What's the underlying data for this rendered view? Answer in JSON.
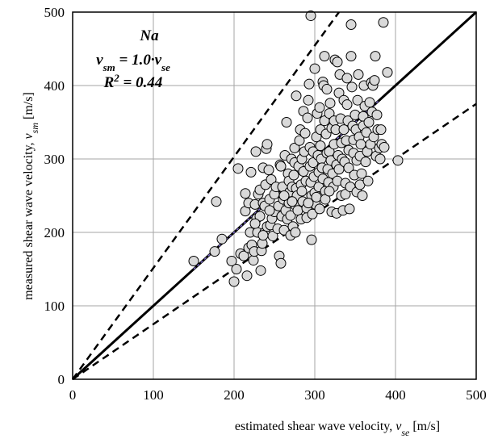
{
  "chart_data": {
    "type": "scatter",
    "title": "",
    "xlabel": "estimated shear wave velocity, v_se [m/s]",
    "ylabel": "measured shear wave velocity, v_sm [m/s]",
    "xlim": [
      0,
      500
    ],
    "ylim": [
      0,
      500
    ],
    "x_ticks": [
      0,
      100,
      200,
      300,
      400,
      500
    ],
    "y_ticks": [
      0,
      100,
      200,
      300,
      400,
      500
    ],
    "grid": true,
    "legend": "none",
    "annotations": {
      "label": "Na",
      "equation": "v_sm = 1.0·v_se",
      "r2": "R² = 0.44"
    },
    "lines": {
      "one_to_one": {
        "x": [
          0,
          500
        ],
        "y": [
          0,
          500
        ]
      },
      "upper_bound": {
        "x": [
          0,
          330
        ],
        "y": [
          0,
          500
        ]
      },
      "lower_bound": {
        "x": [
          0,
          500
        ],
        "y": [
          0,
          375
        ]
      },
      "trend": {
        "x": [
          150,
          380
        ],
        "y": [
          150,
          380
        ]
      }
    },
    "colors": {
      "marker_fill": "#d9d9d9",
      "marker_edge": "#000000",
      "grid": "#a6a6a6",
      "trend": "#7a68c8"
    },
    "series": [
      {
        "points": [
          [
            150,
            161
          ],
          [
            178,
            242
          ],
          [
            176,
            174
          ],
          [
            185,
            191
          ],
          [
            197,
            161
          ],
          [
            200,
            133
          ],
          [
            203,
            150
          ],
          [
            205,
            287
          ],
          [
            208,
            171
          ],
          [
            212,
            168
          ],
          [
            214,
            253
          ],
          [
            214,
            229
          ],
          [
            216,
            141
          ],
          [
            218,
            240
          ],
          [
            218,
            179
          ],
          [
            220,
            200
          ],
          [
            221,
            282
          ],
          [
            222,
            183
          ],
          [
            224,
            162
          ],
          [
            225,
            174
          ],
          [
            226,
            238
          ],
          [
            227,
            310
          ],
          [
            228,
            219
          ],
          [
            229,
            200
          ],
          [
            230,
            252
          ],
          [
            232,
            258
          ],
          [
            232,
            222
          ],
          [
            233,
            148
          ],
          [
            234,
            175
          ],
          [
            235,
            185
          ],
          [
            236,
            240
          ],
          [
            236,
            288
          ],
          [
            238,
            236
          ],
          [
            238,
            200
          ],
          [
            239,
            265
          ],
          [
            240,
            314
          ],
          [
            241,
            320
          ],
          [
            241,
            208
          ],
          [
            243,
            285
          ],
          [
            244,
            245
          ],
          [
            245,
            210
          ],
          [
            246,
            272
          ],
          [
            247,
            219
          ],
          [
            248,
            195
          ],
          [
            250,
            252
          ],
          [
            250,
            228
          ],
          [
            252,
            262
          ],
          [
            254,
            205
          ],
          [
            255,
            236
          ],
          [
            256,
            168
          ],
          [
            257,
            292
          ],
          [
            258,
            158
          ],
          [
            259,
            222
          ],
          [
            260,
            262
          ],
          [
            261,
            245
          ],
          [
            262,
            203
          ],
          [
            263,
            305
          ],
          [
            264,
            230
          ],
          [
            265,
            350
          ],
          [
            266,
            218
          ],
          [
            267,
            280
          ],
          [
            268,
            270
          ],
          [
            268,
            240
          ],
          [
            269,
            255
          ],
          [
            270,
            196
          ],
          [
            270,
            223
          ],
          [
            271,
            300
          ],
          [
            272,
            262
          ],
          [
            273,
            208
          ],
          [
            274,
            278
          ],
          [
            275,
            315
          ],
          [
            275,
            295
          ],
          [
            276,
            237
          ],
          [
            276,
            200
          ],
          [
            277,
            386
          ],
          [
            277,
            260
          ],
          [
            278,
            250
          ],
          [
            279,
            230
          ],
          [
            280,
            290
          ],
          [
            281,
            325
          ],
          [
            282,
            340
          ],
          [
            283,
            218
          ],
          [
            283,
            265
          ],
          [
            284,
            300
          ],
          [
            285,
            242
          ],
          [
            286,
            365
          ],
          [
            286,
            283
          ],
          [
            287,
            310
          ],
          [
            288,
            335
          ],
          [
            289,
            270
          ],
          [
            290,
            233
          ],
          [
            290,
            220
          ],
          [
            291,
            356
          ],
          [
            292,
            380
          ],
          [
            293,
            402
          ],
          [
            294,
            316
          ],
          [
            294,
            290
          ],
          [
            295,
            495
          ],
          [
            295,
            268
          ],
          [
            296,
            250
          ],
          [
            296,
            190
          ],
          [
            297,
            225
          ],
          [
            298,
            310
          ],
          [
            298,
            295
          ],
          [
            299,
            276
          ],
          [
            300,
            254
          ],
          [
            300,
            423
          ],
          [
            301,
            238
          ],
          [
            302,
            330
          ],
          [
            302,
            248
          ],
          [
            303,
            362
          ],
          [
            304,
            305
          ],
          [
            305,
            282
          ],
          [
            305,
            262
          ],
          [
            306,
            370
          ],
          [
            307,
            340
          ],
          [
            307,
            318
          ],
          [
            308,
            300
          ],
          [
            309,
            288
          ],
          [
            310,
            273
          ],
          [
            310,
            405
          ],
          [
            311,
            400
          ],
          [
            312,
            440
          ],
          [
            312,
            352
          ],
          [
            313,
            256
          ],
          [
            313,
            245
          ],
          [
            314,
            334
          ],
          [
            315,
            395
          ],
          [
            315,
            308
          ],
          [
            316,
            286
          ],
          [
            317,
            268
          ],
          [
            318,
            362
          ],
          [
            318,
            310
          ],
          [
            319,
            376
          ],
          [
            320,
            298
          ],
          [
            321,
            342
          ],
          [
            321,
            228
          ],
          [
            322,
            280
          ],
          [
            323,
            262
          ],
          [
            324,
            352
          ],
          [
            324,
            320
          ],
          [
            325,
            435
          ],
          [
            326,
            340
          ],
          [
            327,
            292
          ],
          [
            327,
            226
          ],
          [
            328,
            270
          ],
          [
            329,
            305
          ],
          [
            330,
            390
          ],
          [
            330,
            286
          ],
          [
            331,
            415
          ],
          [
            332,
            355
          ],
          [
            333,
            322
          ],
          [
            333,
            250
          ],
          [
            334,
            300
          ],
          [
            335,
            230
          ],
          [
            336,
            380
          ],
          [
            336,
            340
          ],
          [
            337,
            296
          ],
          [
            338,
            267
          ],
          [
            338,
            252
          ],
          [
            339,
            325
          ],
          [
            340,
            410
          ],
          [
            340,
            374
          ],
          [
            341,
            352
          ],
          [
            342,
            312
          ],
          [
            342,
            288
          ],
          [
            343,
            232
          ],
          [
            344,
            262
          ],
          [
            345,
            483
          ],
          [
            345,
            440
          ],
          [
            346,
            398
          ],
          [
            347,
            345
          ],
          [
            348,
            326
          ],
          [
            348,
            308
          ],
          [
            349,
            278
          ],
          [
            350,
            360
          ],
          [
            351,
            340
          ],
          [
            352,
            298
          ],
          [
            352,
            255
          ],
          [
            353,
            380
          ],
          [
            354,
            415
          ],
          [
            355,
            330
          ],
          [
            356,
            304
          ],
          [
            356,
            265
          ],
          [
            357,
            320
          ],
          [
            358,
            280
          ],
          [
            359,
            250
          ],
          [
            360,
            358
          ],
          [
            360,
            345
          ],
          [
            361,
            400
          ],
          [
            362,
            372
          ],
          [
            363,
            296
          ],
          [
            364,
            336
          ],
          [
            365,
            310
          ],
          [
            366,
            270
          ],
          [
            367,
            350
          ],
          [
            368,
            377
          ],
          [
            369,
            320
          ],
          [
            370,
            404
          ],
          [
            371,
            364
          ],
          [
            372,
            400
          ],
          [
            373,
            330
          ],
          [
            374,
            407
          ],
          [
            375,
            440
          ],
          [
            376,
            304
          ],
          [
            377,
            360
          ],
          [
            378,
            340
          ],
          [
            380,
            315
          ],
          [
            381,
            300
          ],
          [
            382,
            340
          ],
          [
            383,
            320
          ],
          [
            385,
            486
          ],
          [
            386,
            316
          ],
          [
            390,
            418
          ],
          [
            403,
            298
          ],
          [
            328,
            432
          ],
          [
            258,
            290
          ],
          [
            262,
            250
          ],
          [
            272,
            242
          ],
          [
            236,
            196
          ],
          [
            244,
            230
          ],
          [
            226,
            212
          ],
          [
            284,
            256
          ],
          [
            292,
            240
          ],
          [
            306,
            232
          ],
          [
            318,
            256
          ]
        ]
      }
    ]
  }
}
